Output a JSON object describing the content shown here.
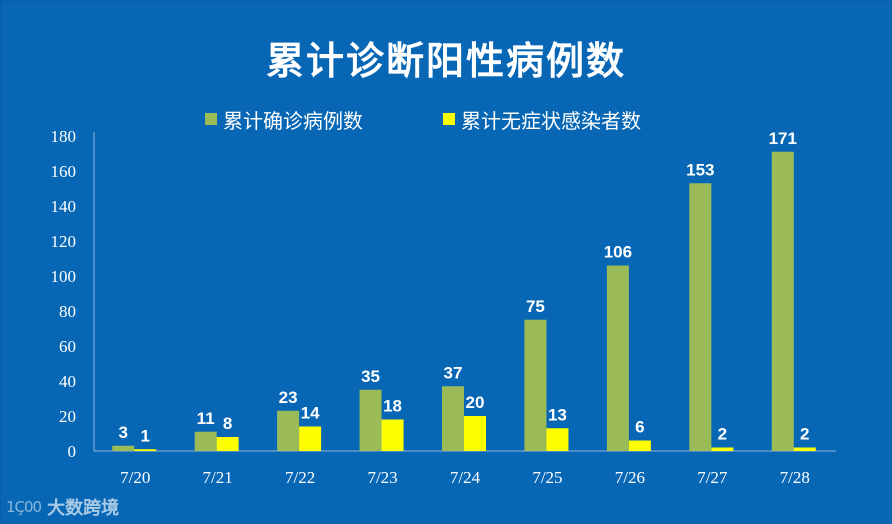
{
  "chart_data": {
    "type": "bar",
    "title": "累计诊断阳性病例数",
    "categories": [
      "7/20",
      "7/21",
      "7/22",
      "7/23",
      "7/24",
      "7/25",
      "7/26",
      "7/27",
      "7/28"
    ],
    "series": [
      {
        "name": "累计确诊病例数",
        "color": "#9bbb59",
        "values": [
          3,
          11,
          23,
          35,
          37,
          75,
          106,
          153,
          171
        ]
      },
      {
        "name": "累计无症状感染者数",
        "color": "#ffff00",
        "values": [
          1,
          8,
          14,
          18,
          20,
          13,
          6,
          2,
          2
        ]
      }
    ],
    "yticks": [
      0,
      20,
      40,
      60,
      80,
      100,
      120,
      140,
      160,
      180
    ],
    "ylim": [
      0,
      180
    ],
    "xlabel": "",
    "ylabel": "",
    "legend_position": "top"
  },
  "watermark": {
    "logo": "1Ç00",
    "text": "大数跨境"
  }
}
